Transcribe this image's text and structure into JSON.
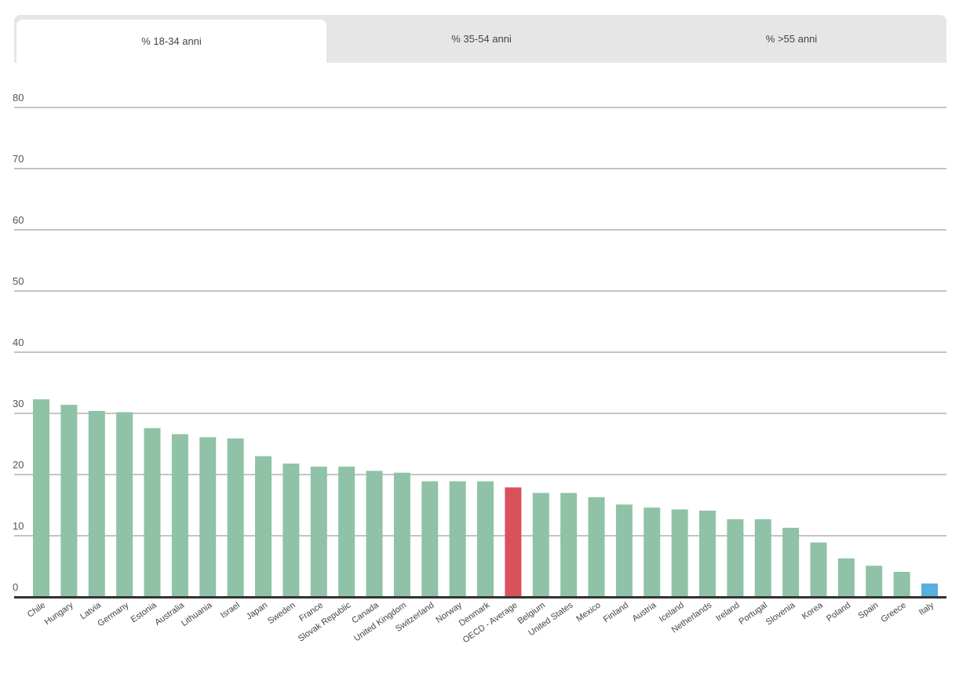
{
  "tabs": [
    {
      "label": "% 18-34 anni",
      "active": true
    },
    {
      "label": "% 35-54 anni",
      "active": false
    },
    {
      "label": "% >55 anni",
      "active": false
    }
  ],
  "colors": {
    "default": "#8fc2a6",
    "average": "#d9525a",
    "highlight": "#5aaee0",
    "grid": "#a0a0a0",
    "axis": "#333333"
  },
  "chart_data": {
    "type": "bar",
    "categories": [
      "Chile",
      "Hungary",
      "Latvia",
      "Germany",
      "Estonia",
      "Australia",
      "Lithuania",
      "Israel",
      "Japan",
      "Sweden",
      "France",
      "Slovak Republic",
      "Canada",
      "United Kingdom",
      "Switzerland",
      "Norway",
      "Denmark",
      "OECD - Average",
      "Belgium",
      "United States",
      "Mexico",
      "Finland",
      "Austria",
      "Iceland",
      "Netherlands",
      "Ireland",
      "Portugal",
      "Slovenia",
      "Korea",
      "Poland",
      "Spain",
      "Greece",
      "Italy"
    ],
    "values": [
      32.3,
      31.4,
      30.4,
      30.2,
      27.6,
      26.6,
      26.1,
      25.9,
      23.0,
      21.8,
      21.3,
      21.3,
      20.6,
      20.3,
      18.9,
      18.9,
      18.9,
      17.9,
      17.0,
      17.0,
      16.3,
      15.1,
      14.6,
      14.3,
      14.1,
      12.7,
      12.7,
      11.3,
      8.9,
      6.3,
      5.1,
      4.1,
      2.2
    ],
    "bar_colors": [
      "default",
      "default",
      "default",
      "default",
      "default",
      "default",
      "default",
      "default",
      "default",
      "default",
      "default",
      "default",
      "default",
      "default",
      "default",
      "default",
      "default",
      "average",
      "default",
      "default",
      "default",
      "default",
      "default",
      "default",
      "default",
      "default",
      "default",
      "default",
      "default",
      "default",
      "default",
      "default",
      "highlight"
    ],
    "yticks": [
      0,
      10,
      20,
      30,
      40,
      50,
      60,
      70,
      80
    ],
    "ylim": [
      0,
      80
    ],
    "grid": true,
    "legend": "none"
  }
}
